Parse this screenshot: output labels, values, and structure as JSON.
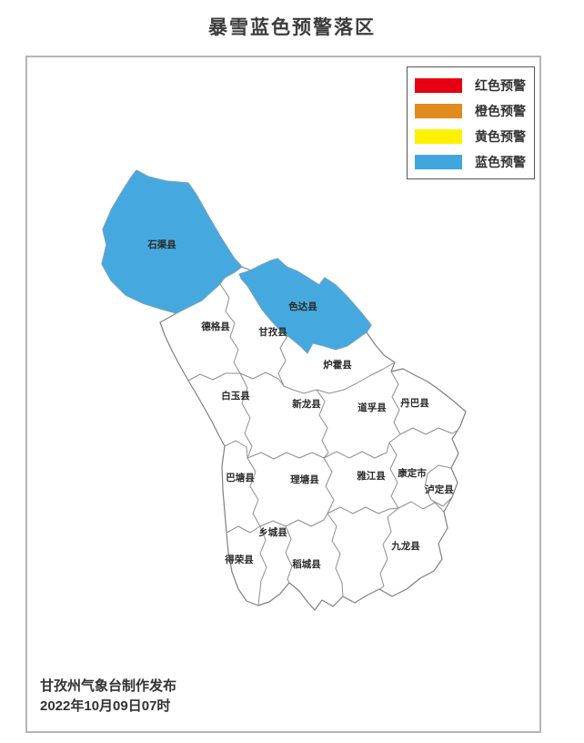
{
  "title": "暴雪蓝色预警落区",
  "colors": {
    "warning_fill": "#45A9DF",
    "red_warning": "#E60012",
    "orange_warning": "#E18A1E",
    "yellow_warning": "#FFF100",
    "blue_warning": "#3FA7DD"
  },
  "legend": {
    "items": [
      {
        "label": "红色预警",
        "color": "#E60012"
      },
      {
        "label": "橙色预警",
        "color": "#E18A1E"
      },
      {
        "label": "黄色预警",
        "color": "#FFF100"
      },
      {
        "label": "蓝色预警",
        "color": "#3FA7DD"
      }
    ]
  },
  "map": {
    "counties": [
      {
        "name": "石渠县",
        "warning": "blue"
      },
      {
        "name": "色达县",
        "warning": "blue"
      },
      {
        "name": "德格县",
        "warning": "none"
      },
      {
        "name": "甘孜县",
        "warning": "none"
      },
      {
        "name": "炉霍县",
        "warning": "none"
      },
      {
        "name": "白玉县",
        "warning": "none"
      },
      {
        "name": "新龙县",
        "warning": "none"
      },
      {
        "name": "道孚县",
        "warning": "none"
      },
      {
        "name": "丹巴县",
        "warning": "none"
      },
      {
        "name": "巴塘县",
        "warning": "none"
      },
      {
        "name": "理塘县",
        "warning": "none"
      },
      {
        "name": "雅江县",
        "warning": "none"
      },
      {
        "name": "康定市",
        "warning": "none"
      },
      {
        "name": "泸定县",
        "warning": "none"
      },
      {
        "name": "九龙县",
        "warning": "none"
      },
      {
        "name": "乡城县",
        "warning": "none"
      },
      {
        "name": "得荣县",
        "warning": "none"
      },
      {
        "name": "稻城县",
        "warning": "none"
      }
    ]
  },
  "footer": {
    "line1": "甘孜州气象台制作发布",
    "line2": "2022年10月09日07时"
  }
}
